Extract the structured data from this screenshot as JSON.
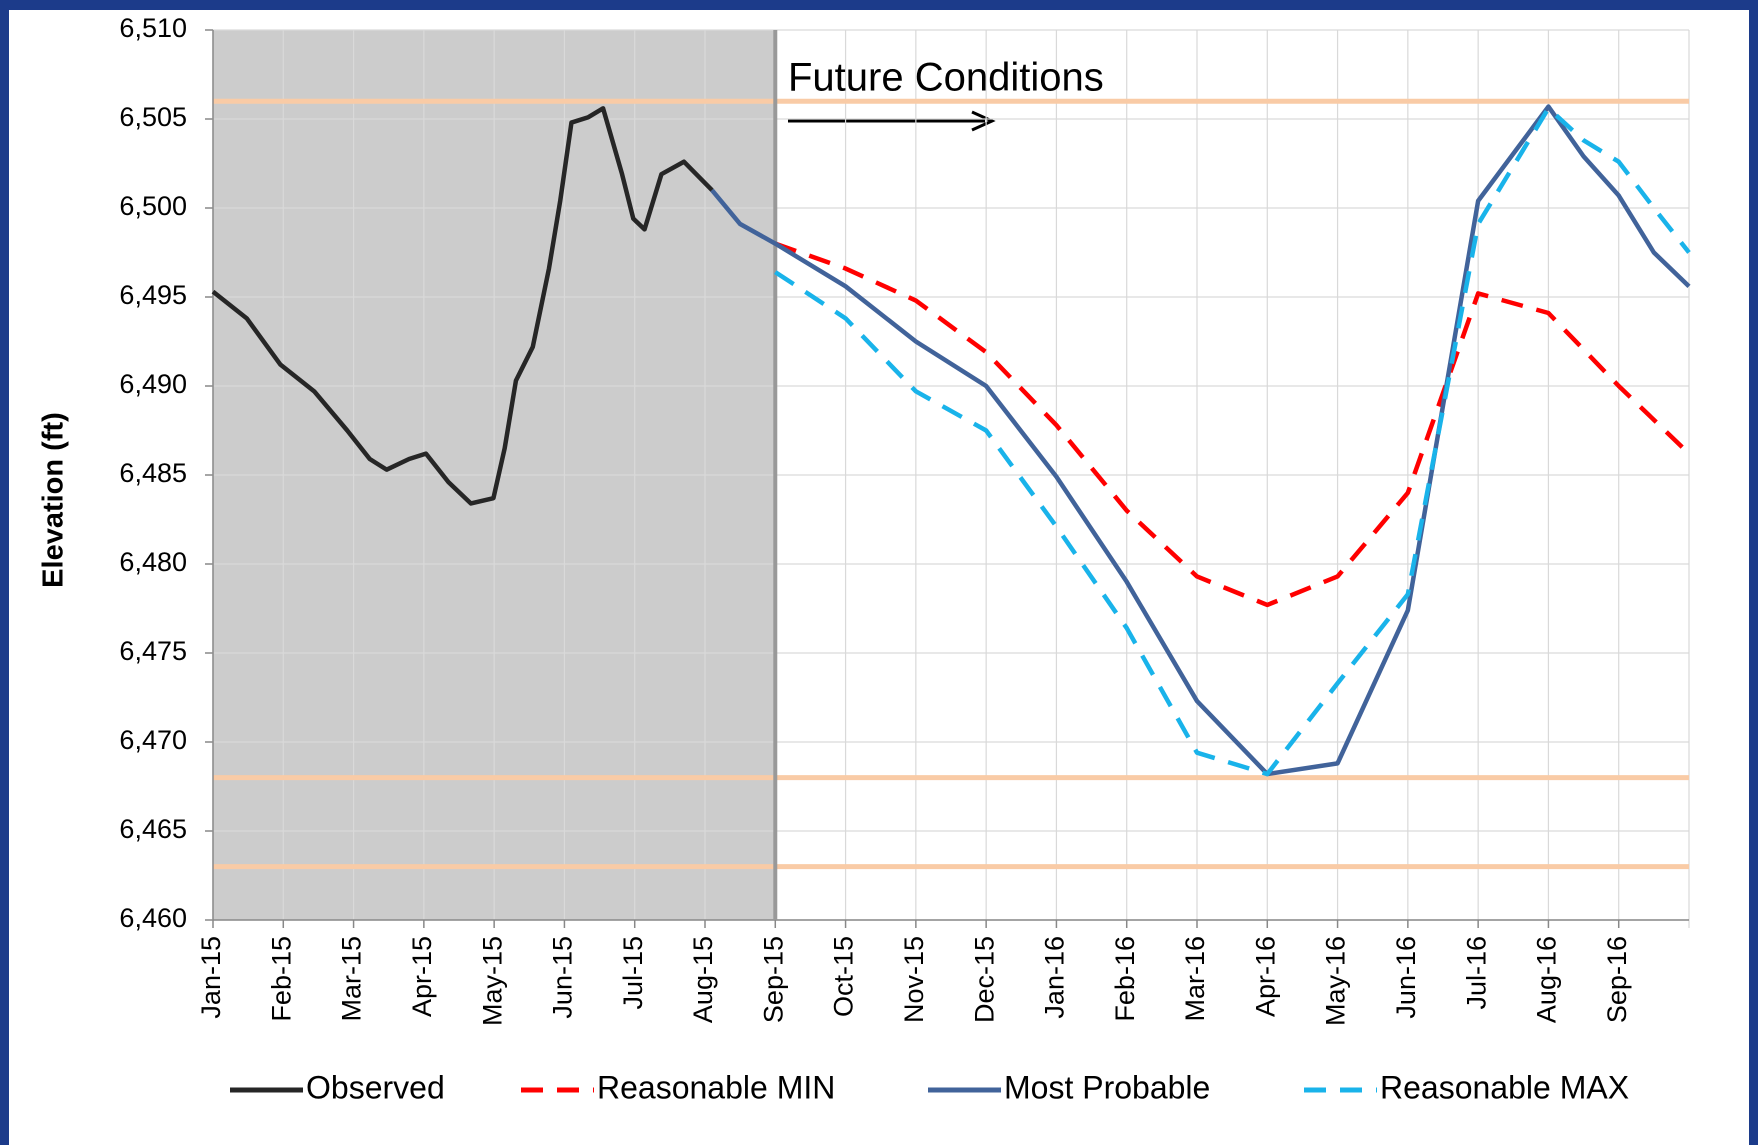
{
  "chart_data": {
    "type": "line",
    "y_label": "Elevation (ft)",
    "annotation": "Future Conditions",
    "xlim": [
      0,
      21
    ],
    "xticks": [
      {
        "value": 0,
        "label": "Jan-15"
      },
      {
        "value": 1,
        "label": "Feb-15"
      },
      {
        "value": 2,
        "label": "Mar-15"
      },
      {
        "value": 3,
        "label": "Apr-15"
      },
      {
        "value": 4,
        "label": "May-15"
      },
      {
        "value": 5,
        "label": "Jun-15"
      },
      {
        "value": 6,
        "label": "Jul-15"
      },
      {
        "value": 7,
        "label": "Aug-15"
      },
      {
        "value": 8,
        "label": "Sep-15"
      },
      {
        "value": 9,
        "label": "Oct-15"
      },
      {
        "value": 10,
        "label": "Nov-15"
      },
      {
        "value": 11,
        "label": "Dec-15"
      },
      {
        "value": 12,
        "label": "Jan-16"
      },
      {
        "value": 13,
        "label": "Feb-16"
      },
      {
        "value": 14,
        "label": "Mar-16"
      },
      {
        "value": 15,
        "label": "Apr-16"
      },
      {
        "value": 16,
        "label": "May-16"
      },
      {
        "value": 17,
        "label": "Jun-16"
      },
      {
        "value": 18,
        "label": "Jul-16"
      },
      {
        "value": 19,
        "label": "Aug-16"
      },
      {
        "value": 20,
        "label": "Sep-16"
      }
    ],
    "ylim": [
      6460,
      6510
    ],
    "yticks": [
      {
        "value": 6460,
        "label": "6,460"
      },
      {
        "value": 6465,
        "label": "6,465"
      },
      {
        "value": 6470,
        "label": "6,470"
      },
      {
        "value": 6475,
        "label": "6,475"
      },
      {
        "value": 6480,
        "label": "6,480"
      },
      {
        "value": 6485,
        "label": "6,485"
      },
      {
        "value": 6490,
        "label": "6,490"
      },
      {
        "value": 6495,
        "label": "6,495"
      },
      {
        "value": 6500,
        "label": "6,500"
      },
      {
        "value": 6505,
        "label": "6,505"
      },
      {
        "value": 6510,
        "label": "6,510"
      }
    ],
    "grid": true,
    "shaded_until": 8,
    "reference_lines": [
      6506,
      6468,
      6463
    ],
    "reference_color": "#f9cba6",
    "series": [
      {
        "name": "Observed",
        "color": "#262626",
        "dashed": false,
        "x": [
          0,
          0.48,
          0.96,
          1.44,
          1.91,
          2.23,
          2.47,
          2.79,
          3.03,
          3.35,
          3.67,
          3.99,
          4.15,
          4.31,
          4.55,
          4.78,
          4.94,
          5.1,
          5.34,
          5.55,
          5.82,
          5.98,
          6.14,
          6.38,
          6.7,
          7.1
        ],
        "values": [
          6495.3,
          6493.8,
          6491.2,
          6489.7,
          6487.5,
          6485.9,
          6485.3,
          6485.9,
          6486.2,
          6484.6,
          6483.4,
          6483.7,
          6486.5,
          6490.3,
          6492.2,
          6496.6,
          6500.4,
          6504.8,
          6505.1,
          6505.6,
          6501.9,
          6499.4,
          6498.8,
          6501.9,
          6502.6,
          6501.0
        ]
      },
      {
        "name": "Reasonable MIN",
        "color": "#ff0000",
        "dashed": true,
        "x": [
          8,
          9,
          10,
          11,
          12,
          13,
          14,
          15,
          16,
          17,
          18,
          19,
          20,
          21
        ],
        "values": [
          6498,
          6496.6,
          6494.8,
          6491.9,
          6487.8,
          6483,
          6479.3,
          6477.7,
          6479.3,
          6484,
          6495.2,
          6494.1,
          6490,
          6486.2
        ]
      },
      {
        "name": "Most Probable",
        "color": "#41639a",
        "dashed": false,
        "x": [
          7.1,
          7.5,
          8,
          9,
          10,
          11,
          12,
          13,
          14,
          15,
          16,
          17,
          18,
          19,
          19.5,
          20,
          20.5,
          21
        ],
        "values": [
          6501.0,
          6499.1,
          6498,
          6495.6,
          6492.5,
          6490,
          6484.9,
          6479,
          6472.3,
          6468.2,
          6468.8,
          6477.4,
          6500.4,
          6505.7,
          6502.9,
          6500.7,
          6497.5,
          6495.6
        ]
      },
      {
        "name": "Reasonable MAX",
        "color": "#19b3ea",
        "dashed": true,
        "x": [
          8,
          9,
          10,
          11,
          12,
          13,
          14,
          15,
          16,
          17,
          18,
          19,
          19.5,
          20,
          20.5,
          21
        ],
        "values": [
          6496.4,
          6493.8,
          6489.7,
          6487.5,
          6482.1,
          6476.4,
          6469.4,
          6468.2,
          6473.3,
          6478.3,
          6499.1,
          6505.6,
          6503.8,
          6502.6,
          6500,
          6497.5
        ]
      }
    ]
  }
}
